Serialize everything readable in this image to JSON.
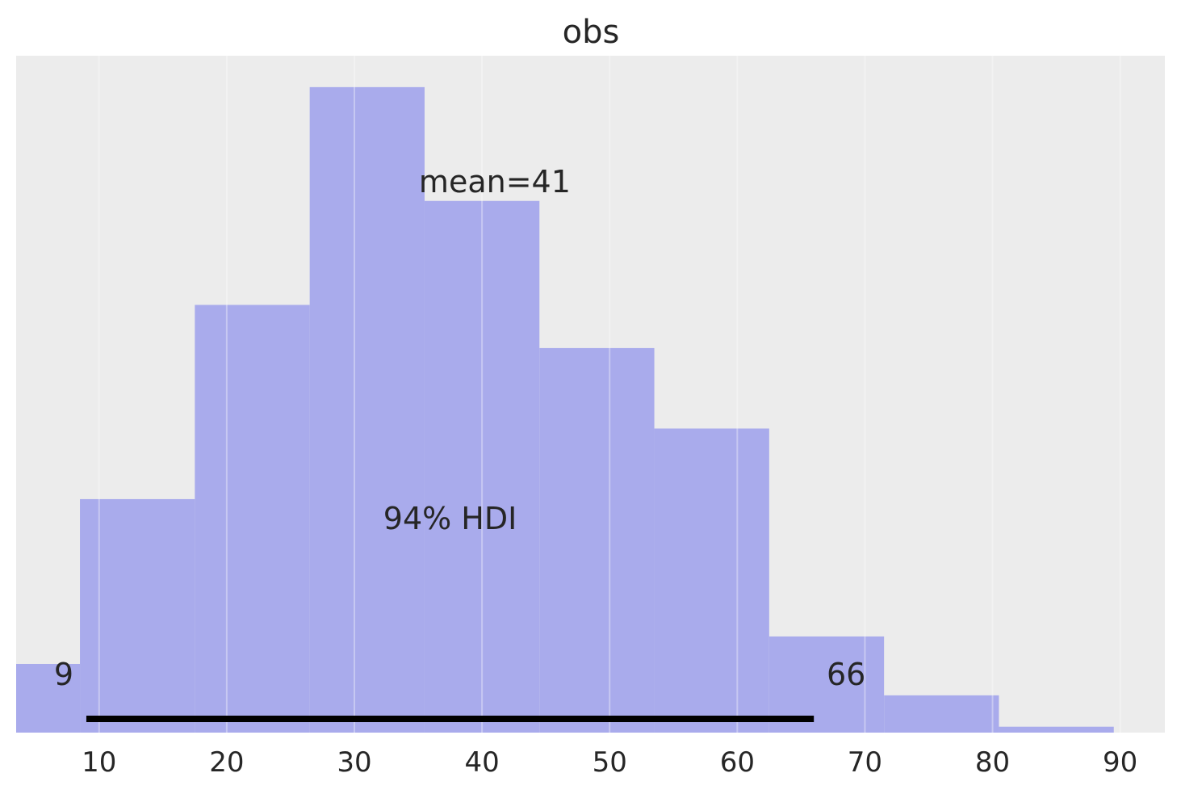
{
  "chart_data": {
    "type": "bar",
    "title": "obs",
    "xlabel": "",
    "ylabel": "",
    "xlim": [
      3.5,
      93.5
    ],
    "x_ticks": [
      10,
      20,
      30,
      40,
      50,
      60,
      70,
      80,
      90
    ],
    "grid": true,
    "y_ticks_visible": false,
    "bins": [
      {
        "x0": 0.5,
        "x1": 8.5,
        "density": 0.0035
      },
      {
        "x0": 8.5,
        "x1": 17.5,
        "density": 0.0119
      },
      {
        "x0": 17.5,
        "x1": 26.5,
        "density": 0.0218
      },
      {
        "x0": 26.5,
        "x1": 35.5,
        "density": 0.0329
      },
      {
        "x0": 35.5,
        "x1": 44.5,
        "density": 0.0271
      },
      {
        "x0": 44.5,
        "x1": 53.5,
        "density": 0.0196
      },
      {
        "x0": 53.5,
        "x1": 62.5,
        "density": 0.0155
      },
      {
        "x0": 62.5,
        "x1": 71.5,
        "density": 0.0049
      },
      {
        "x0": 71.5,
        "x1": 80.5,
        "density": 0.0019
      },
      {
        "x0": 80.5,
        "x1": 89.5,
        "density": 0.0003
      }
    ],
    "ylim": [
      0,
      0.0345
    ],
    "bar_color": "#a9abec",
    "mean": 41,
    "mean_label": "mean=41",
    "hdi": {
      "prob_label": "94% HDI",
      "low": 9,
      "high": 66,
      "low_label": "9",
      "high_label": "66",
      "color": "#000000"
    }
  }
}
